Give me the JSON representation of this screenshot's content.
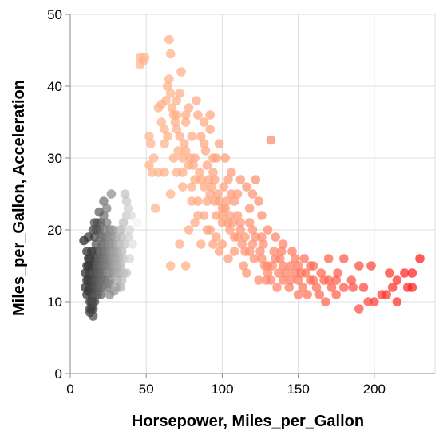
{
  "chart_data": {
    "type": "scatter",
    "xlabel": "Horsepower, Miles_per_Gallon",
    "ylabel": "Miles_per_Gallon, Acceleration",
    "xlim": [
      0,
      240
    ],
    "ylim": [
      0,
      50
    ],
    "x_ticks": [
      0,
      50,
      100,
      150,
      200
    ],
    "y_ticks": [
      0,
      10,
      20,
      30,
      40,
      50
    ],
    "grid": true,
    "legend": "none",
    "series": [
      {
        "description": "x = Horsepower, y = Miles_per_Gallon, color scale light orange to red",
        "color_low": "#ffb48a",
        "color_high": "#ff1a1a",
        "points": [
          [
            46,
            44
          ],
          [
            48,
            43.5
          ],
          [
            46,
            43
          ],
          [
            49,
            44
          ],
          [
            52,
            33
          ],
          [
            52,
            29
          ],
          [
            53,
            32
          ],
          [
            54,
            28
          ],
          [
            55,
            30
          ],
          [
            58,
            37
          ],
          [
            60,
            35
          ],
          [
            62,
            34
          ],
          [
            63,
            38
          ],
          [
            64,
            40
          ],
          [
            65,
            46.5
          ],
          [
            66,
            44.5
          ],
          [
            65,
            41
          ],
          [
            67,
            37
          ],
          [
            68,
            36
          ],
          [
            69,
            35
          ],
          [
            70,
            36
          ],
          [
            70,
            34
          ],
          [
            71,
            31
          ],
          [
            72,
            33
          ],
          [
            74,
            30
          ],
          [
            75,
            32
          ],
          [
            76,
            31
          ],
          [
            78,
            29
          ],
          [
            79,
            30
          ],
          [
            80,
            26
          ],
          [
            81,
            29
          ],
          [
            82,
            27
          ],
          [
            83,
            38
          ],
          [
            84,
            24
          ],
          [
            85,
            28
          ],
          [
            86,
            27
          ],
          [
            88,
            26
          ],
          [
            89,
            31
          ],
          [
            90,
            24
          ],
          [
            90,
            29
          ],
          [
            91,
            27
          ],
          [
            92,
            25
          ],
          [
            93,
            26
          ],
          [
            95,
            24
          ],
          [
            95,
            27
          ],
          [
            96,
            22
          ],
          [
            97,
            25
          ],
          [
            98,
            24
          ],
          [
            100,
            22
          ],
          [
            100,
            21
          ],
          [
            101,
            26
          ],
          [
            102,
            23
          ],
          [
            103,
            24
          ],
          [
            105,
            20
          ],
          [
            105,
            22
          ],
          [
            107,
            21
          ],
          [
            108,
            24
          ],
          [
            110,
            19
          ],
          [
            110,
            22
          ],
          [
            112,
            20
          ],
          [
            113,
            18
          ],
          [
            115,
            19
          ],
          [
            115,
            17
          ],
          [
            118,
            21
          ],
          [
            120,
            18
          ],
          [
            121,
            16
          ],
          [
            122,
            19
          ],
          [
            125,
            17
          ],
          [
            126,
            16
          ],
          [
            127,
            18
          ],
          [
            129,
            13
          ],
          [
            130,
            15
          ],
          [
            130,
            14
          ],
          [
            132,
            32.5
          ],
          [
            133,
            15
          ],
          [
            135,
            16
          ],
          [
            137,
            14
          ],
          [
            139,
            17
          ],
          [
            140,
            15
          ],
          [
            140,
            13
          ],
          [
            142,
            14
          ],
          [
            145,
            15
          ],
          [
            145,
            13
          ],
          [
            148,
            14
          ],
          [
            148,
            16
          ],
          [
            150,
            13
          ],
          [
            150,
            11
          ],
          [
            150,
            15
          ],
          [
            152,
            14
          ],
          [
            153,
            12
          ],
          [
            155,
            14
          ],
          [
            158,
            13
          ],
          [
            160,
            15
          ],
          [
            160,
            13
          ],
          [
            162,
            12
          ],
          [
            165,
            14
          ],
          [
            167,
            13
          ],
          [
            170,
            16
          ],
          [
            170,
            13
          ],
          [
            172,
            12
          ],
          [
            175,
            13
          ],
          [
            175,
            11
          ],
          [
            180,
            16
          ],
          [
            180,
            12
          ],
          [
            185,
            13
          ],
          [
            190,
            15
          ],
          [
            190,
            9
          ],
          [
            193,
            12
          ],
          [
            198,
            15
          ],
          [
            200,
            10
          ],
          [
            205,
            11
          ],
          [
            208,
            11
          ],
          [
            210,
            14
          ],
          [
            212,
            12
          ],
          [
            215,
            13
          ],
          [
            215,
            10
          ],
          [
            220,
            14
          ],
          [
            222,
            12
          ],
          [
            225,
            14
          ],
          [
            225,
            12
          ],
          [
            230,
            16
          ],
          [
            60,
            37.5
          ],
          [
            72,
            39
          ],
          [
            76,
            36
          ],
          [
            78,
            37
          ],
          [
            84,
            36
          ],
          [
            92,
            36
          ],
          [
            94,
            30
          ],
          [
            98,
            32
          ],
          [
            102,
            30
          ],
          [
            106,
            28
          ],
          [
            110,
            25
          ],
          [
            112,
            27
          ],
          [
            118,
            23
          ],
          [
            120,
            25
          ],
          [
            122,
            27
          ],
          [
            126,
            22
          ],
          [
            130,
            20
          ],
          [
            135,
            19
          ],
          [
            140,
            18
          ],
          [
            58,
            28
          ],
          [
            62,
            28
          ],
          [
            66,
            25
          ],
          [
            74,
            26
          ],
          [
            78,
            20
          ],
          [
            82,
            21
          ],
          [
            86,
            18
          ],
          [
            88,
            22
          ],
          [
            92,
            20
          ],
          [
            96,
            19
          ],
          [
            100,
            18
          ],
          [
            104,
            16
          ],
          [
            108,
            17
          ],
          [
            114,
            15
          ],
          [
            116,
            14
          ],
          [
            124,
            13
          ],
          [
            128,
            15
          ],
          [
            132,
            13
          ],
          [
            136,
            12
          ],
          [
            144,
            12
          ],
          [
            156,
            11
          ],
          [
            164,
            11
          ],
          [
            168,
            10
          ],
          [
            176,
            14
          ],
          [
            186,
            12
          ],
          [
            196,
            10
          ],
          [
            70,
            28
          ],
          [
            80,
            33
          ],
          [
            86,
            33
          ],
          [
            88,
            35
          ],
          [
            92,
            34
          ],
          [
            96,
            30
          ],
          [
            104,
            27
          ],
          [
            106,
            25
          ],
          [
            116,
            26
          ],
          [
            124,
            24
          ],
          [
            68,
            30
          ],
          [
            74,
            28
          ],
          [
            80,
            24
          ],
          [
            84,
            22
          ],
          [
            90,
            20
          ],
          [
            94,
            18
          ],
          [
            98,
            17
          ],
          [
            108,
            19
          ],
          [
            112,
            21
          ],
          [
            118,
            17
          ],
          [
            120,
            20
          ],
          [
            126,
            19
          ],
          [
            134,
            17
          ],
          [
            138,
            16
          ],
          [
            146,
            17
          ],
          [
            154,
            16
          ],
          [
            158,
            15
          ],
          [
            66,
            15
          ],
          [
            72,
            18
          ],
          [
            76,
            15
          ],
          [
            56,
            23
          ],
          [
            62,
            32
          ],
          [
            64,
            33
          ],
          [
            66,
            39
          ],
          [
            70,
            38
          ],
          [
            73,
            42
          ],
          [
            76,
            35
          ],
          [
            82,
            30
          ],
          [
            88,
            32
          ],
          [
            94,
            28
          ],
          [
            100,
            23
          ],
          [
            104,
            21
          ]
        ]
      },
      {
        "description": "x = Miles_per_Gallon, y = Acceleration, grayscale color scale",
        "color_low": "#222222",
        "color_high": "#f2f2f2",
        "points": [
          [
            9,
            18.5
          ],
          [
            10,
            14
          ],
          [
            10,
            12
          ],
          [
            11,
            15
          ],
          [
            11,
            13
          ],
          [
            11,
            11
          ],
          [
            12,
            16
          ],
          [
            12,
            13
          ],
          [
            12,
            11.5
          ],
          [
            13,
            14
          ],
          [
            13,
            12
          ],
          [
            13,
            10
          ],
          [
            13,
            9
          ],
          [
            13,
            8.5
          ],
          [
            14,
            15
          ],
          [
            14,
            13
          ],
          [
            14,
            12
          ],
          [
            14,
            11
          ],
          [
            14,
            10
          ],
          [
            15,
            17
          ],
          [
            15,
            14
          ],
          [
            15,
            12
          ],
          [
            15,
            10
          ],
          [
            15,
            9
          ],
          [
            16,
            16
          ],
          [
            16,
            15
          ],
          [
            16,
            13
          ],
          [
            16,
            11
          ],
          [
            16,
            19
          ],
          [
            17,
            18
          ],
          [
            17,
            16
          ],
          [
            17,
            14
          ],
          [
            17,
            12
          ],
          [
            18,
            21
          ],
          [
            18,
            17
          ],
          [
            18,
            15
          ],
          [
            18,
            13
          ],
          [
            19,
            20
          ],
          [
            19,
            16
          ],
          [
            19,
            14
          ],
          [
            19,
            12
          ],
          [
            20,
            19
          ],
          [
            20,
            17
          ],
          [
            20,
            15
          ],
          [
            20,
            13
          ],
          [
            21,
            18
          ],
          [
            21,
            16
          ],
          [
            21,
            14
          ],
          [
            22,
            22
          ],
          [
            22,
            19
          ],
          [
            22,
            17
          ],
          [
            22,
            15
          ],
          [
            23,
            20
          ],
          [
            23,
            18
          ],
          [
            23,
            16
          ],
          [
            24,
            21
          ],
          [
            24,
            17
          ],
          [
            24,
            15
          ],
          [
            25,
            19
          ],
          [
            25,
            16
          ],
          [
            25,
            14
          ],
          [
            26,
            18
          ],
          [
            26,
            20
          ],
          [
            26,
            15
          ],
          [
            27,
            17
          ],
          [
            27,
            19
          ],
          [
            27,
            14
          ],
          [
            28,
            16
          ],
          [
            28,
            18
          ],
          [
            29,
            15
          ],
          [
            29,
            17
          ],
          [
            30,
            19
          ],
          [
            30,
            16
          ],
          [
            30,
            14
          ],
          [
            31,
            17
          ],
          [
            31,
            15
          ],
          [
            32,
            18
          ],
          [
            32,
            16
          ],
          [
            33,
            20
          ],
          [
            33,
            15
          ],
          [
            34,
            17
          ],
          [
            34,
            19
          ],
          [
            35,
            16
          ],
          [
            35,
            21
          ],
          [
            36,
            18
          ],
          [
            37,
            24
          ],
          [
            37,
            22
          ],
          [
            38,
            19
          ],
          [
            38,
            23
          ],
          [
            39,
            20
          ],
          [
            40,
            22
          ],
          [
            41,
            18
          ],
          [
            44,
            21
          ],
          [
            27,
            25
          ],
          [
            22,
            24
          ],
          [
            36,
            25
          ],
          [
            31,
            13
          ],
          [
            29,
            11.5
          ],
          [
            33,
            12
          ],
          [
            26,
            11
          ],
          [
            28,
            20
          ],
          [
            24,
            23
          ],
          [
            20,
            21
          ],
          [
            15,
            20
          ],
          [
            12,
            19
          ],
          [
            17,
            20
          ],
          [
            21,
            12
          ],
          [
            23,
            13
          ],
          [
            25,
            12.5
          ],
          [
            19,
            22.5
          ],
          [
            34,
            13
          ],
          [
            37,
            14
          ],
          [
            39,
            16
          ],
          [
            13,
            16
          ],
          [
            11,
            17
          ],
          [
            12,
            15
          ],
          [
            14,
            17
          ],
          [
            16,
            21
          ],
          [
            18,
            11
          ],
          [
            20,
            11
          ],
          [
            22,
            13
          ],
          [
            24,
            12
          ],
          [
            26,
            13
          ],
          [
            30,
            12
          ],
          [
            32,
            14
          ],
          [
            35,
            14
          ],
          [
            14,
            9
          ],
          [
            15,
            8
          ],
          [
            16,
            10
          ]
        ]
      }
    ]
  }
}
